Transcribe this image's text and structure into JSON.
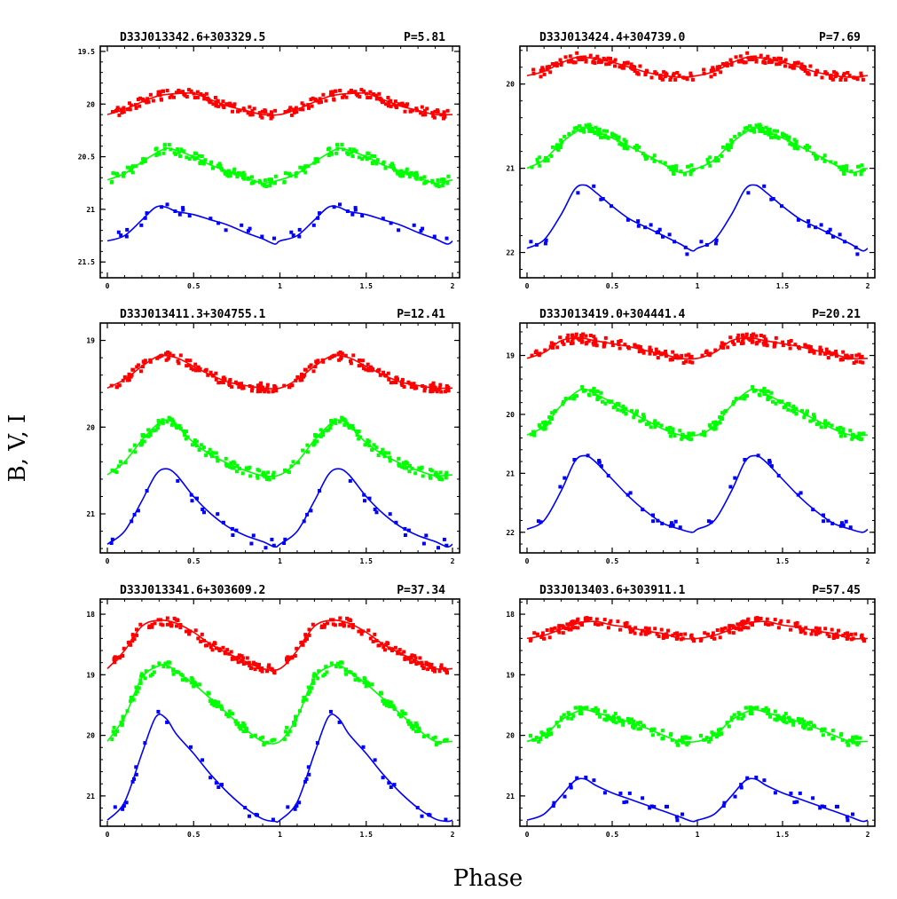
{
  "figure": {
    "ylabel": "B, V, I",
    "xlabel": "Phase"
  },
  "colors": {
    "I": "#ff0000",
    "V": "#00ff00",
    "B": "#0000ff"
  },
  "chart_data": [
    {
      "type": "line",
      "title": "D33J013342.6+303329.5",
      "period_label": "P=5.81",
      "xlim": [
        0,
        2
      ],
      "ylim": [
        21.65,
        19.45
      ],
      "xticks": [
        0,
        0.5,
        1,
        1.5,
        2
      ],
      "xtick_labels": [
        "0",
        "0.5",
        "1",
        "1.5",
        "2"
      ],
      "yticks": [
        19.5,
        20,
        20.5,
        21,
        21.5
      ],
      "ytick_labels": [
        "19.5",
        "20",
        "20.5",
        "21",
        "21.5"
      ],
      "series": [
        {
          "band": "I",
          "phase": [
            0,
            0.1,
            0.2,
            0.3,
            0.4,
            0.5,
            0.6,
            0.7,
            0.8,
            0.9,
            1.0
          ],
          "mag": [
            20.1,
            20.05,
            19.98,
            19.92,
            19.9,
            19.9,
            19.96,
            20.02,
            20.06,
            20.1,
            20.1
          ]
        },
        {
          "band": "V",
          "phase": [
            0,
            0.1,
            0.2,
            0.3,
            0.35,
            0.4,
            0.5,
            0.6,
            0.7,
            0.8,
            0.9,
            1.0
          ],
          "mag": [
            20.72,
            20.66,
            20.55,
            20.45,
            20.42,
            20.44,
            20.5,
            20.58,
            20.64,
            20.7,
            20.75,
            20.72
          ]
        },
        {
          "band": "B",
          "phase": [
            0,
            0.1,
            0.2,
            0.28,
            0.34,
            0.4,
            0.5,
            0.6,
            0.7,
            0.8,
            0.9,
            0.97,
            1.0
          ],
          "mag": [
            21.3,
            21.25,
            21.1,
            20.98,
            20.98,
            21.02,
            21.05,
            21.1,
            21.15,
            21.22,
            21.28,
            21.33,
            21.3
          ]
        }
      ]
    },
    {
      "type": "line",
      "title": "D33J013424.4+304739.0",
      "period_label": "P=7.69",
      "xlim": [
        0,
        2
      ],
      "ylim": [
        22.3,
        19.55
      ],
      "xticks": [
        0,
        0.5,
        1,
        1.5,
        2
      ],
      "xtick_labels": [
        "0",
        "0.5",
        "1",
        "1.5",
        "2"
      ],
      "yticks": [
        20,
        21,
        22
      ],
      "ytick_labels": [
        "20",
        "21",
        "22"
      ],
      "series": [
        {
          "band": "I",
          "phase": [
            0,
            0.1,
            0.2,
            0.3,
            0.4,
            0.5,
            0.6,
            0.7,
            0.8,
            0.9,
            1.0
          ],
          "mag": [
            19.9,
            19.85,
            19.75,
            19.68,
            19.7,
            19.74,
            19.8,
            19.86,
            19.9,
            19.92,
            19.9
          ]
        },
        {
          "band": "V",
          "phase": [
            0,
            0.1,
            0.2,
            0.3,
            0.35,
            0.4,
            0.5,
            0.6,
            0.7,
            0.8,
            0.9,
            1.0
          ],
          "mag": [
            21.0,
            20.9,
            20.7,
            20.55,
            20.52,
            20.56,
            20.64,
            20.74,
            20.84,
            20.95,
            21.05,
            21.0
          ]
        },
        {
          "band": "B",
          "phase": [
            0,
            0.1,
            0.2,
            0.28,
            0.34,
            0.4,
            0.5,
            0.6,
            0.7,
            0.8,
            0.9,
            0.97,
            1.0
          ],
          "mag": [
            21.95,
            21.85,
            21.55,
            21.25,
            21.2,
            21.28,
            21.45,
            21.6,
            21.7,
            21.8,
            21.9,
            21.98,
            21.95
          ]
        }
      ]
    },
    {
      "type": "line",
      "title": "D33J013411.3+304755.1",
      "period_label": "P=12.41",
      "xlim": [
        0,
        2
      ],
      "ylim": [
        21.45,
        18.8
      ],
      "xticks": [
        0,
        0.5,
        1,
        1.5,
        2
      ],
      "xtick_labels": [
        "0",
        "0.5",
        "1",
        "1.5",
        "2"
      ],
      "yticks": [
        19,
        20,
        21
      ],
      "ytick_labels": [
        "19",
        "20",
        "21"
      ],
      "series": [
        {
          "band": "I",
          "phase": [
            0,
            0.1,
            0.2,
            0.3,
            0.4,
            0.5,
            0.6,
            0.7,
            0.8,
            0.9,
            1.0
          ],
          "mag": [
            19.55,
            19.45,
            19.3,
            19.18,
            19.2,
            19.3,
            19.4,
            19.48,
            19.52,
            19.55,
            19.55
          ]
        },
        {
          "band": "V",
          "phase": [
            0,
            0.1,
            0.2,
            0.3,
            0.35,
            0.4,
            0.5,
            0.6,
            0.7,
            0.8,
            0.9,
            1.0
          ],
          "mag": [
            20.55,
            20.4,
            20.15,
            19.95,
            19.92,
            19.98,
            20.18,
            20.32,
            20.42,
            20.5,
            20.56,
            20.55
          ]
        },
        {
          "band": "B",
          "phase": [
            0,
            0.1,
            0.2,
            0.28,
            0.34,
            0.4,
            0.5,
            0.6,
            0.7,
            0.8,
            0.9,
            0.97,
            1.0
          ],
          "mag": [
            21.35,
            21.2,
            20.85,
            20.55,
            20.48,
            20.55,
            20.8,
            21.0,
            21.15,
            21.25,
            21.32,
            21.38,
            21.35
          ]
        }
      ]
    },
    {
      "type": "line",
      "title": "D33J013419.0+304441.4",
      "period_label": "P=20.21",
      "xlim": [
        0,
        2
      ],
      "ylim": [
        22.35,
        18.45
      ],
      "xticks": [
        0,
        0.5,
        1,
        1.5,
        2
      ],
      "xtick_labels": [
        "0",
        "0.5",
        "1",
        "1.5",
        "2"
      ],
      "yticks": [
        19,
        20,
        21,
        22
      ],
      "ytick_labels": [
        "19",
        "20",
        "21",
        "22"
      ],
      "series": [
        {
          "band": "I",
          "phase": [
            0,
            0.1,
            0.2,
            0.3,
            0.4,
            0.5,
            0.6,
            0.7,
            0.8,
            0.9,
            1.0
          ],
          "mag": [
            19.05,
            18.95,
            18.75,
            18.7,
            18.75,
            18.8,
            18.85,
            18.92,
            18.98,
            19.05,
            19.05
          ]
        },
        {
          "band": "V",
          "phase": [
            0,
            0.1,
            0.2,
            0.3,
            0.35,
            0.4,
            0.5,
            0.6,
            0.7,
            0.8,
            0.9,
            1.0
          ],
          "mag": [
            20.35,
            20.2,
            19.85,
            19.6,
            19.58,
            19.65,
            19.8,
            19.95,
            20.1,
            20.25,
            20.35,
            20.35
          ]
        },
        {
          "band": "B",
          "phase": [
            0,
            0.1,
            0.2,
            0.28,
            0.34,
            0.4,
            0.5,
            0.6,
            0.7,
            0.8,
            0.9,
            0.97,
            1.0
          ],
          "mag": [
            21.95,
            21.8,
            21.3,
            20.8,
            20.7,
            20.8,
            21.1,
            21.4,
            21.65,
            21.85,
            21.95,
            22.0,
            21.95
          ]
        }
      ]
    },
    {
      "type": "line",
      "title": "D33J013341.6+303609.2",
      "period_label": "P=37.34",
      "xlim": [
        0,
        2
      ],
      "ylim": [
        21.5,
        17.75
      ],
      "xticks": [
        0,
        0.5,
        1,
        1.5,
        2
      ],
      "xtick_labels": [
        "0",
        "0.5",
        "1",
        "1.5",
        "2"
      ],
      "yticks": [
        18,
        19,
        20,
        21
      ],
      "ytick_labels": [
        "18",
        "19",
        "20",
        "21"
      ],
      "series": [
        {
          "band": "I",
          "phase": [
            0,
            0.1,
            0.2,
            0.3,
            0.4,
            0.5,
            0.6,
            0.7,
            0.8,
            0.9,
            1.0
          ],
          "mag": [
            18.9,
            18.6,
            18.2,
            18.1,
            18.15,
            18.3,
            18.5,
            18.65,
            18.78,
            18.9,
            18.9
          ]
        },
        {
          "band": "V",
          "phase": [
            0,
            0.1,
            0.2,
            0.3,
            0.35,
            0.4,
            0.5,
            0.6,
            0.7,
            0.8,
            0.9,
            1.0
          ],
          "mag": [
            20.1,
            19.7,
            19.05,
            18.85,
            18.85,
            18.95,
            19.15,
            19.4,
            19.65,
            19.9,
            20.1,
            20.1
          ]
        },
        {
          "band": "B",
          "phase": [
            0,
            0.1,
            0.2,
            0.28,
            0.34,
            0.4,
            0.5,
            0.6,
            0.7,
            0.8,
            0.9,
            0.97,
            1.0
          ],
          "mag": [
            21.4,
            21.1,
            20.3,
            19.7,
            19.72,
            19.98,
            20.3,
            20.65,
            20.95,
            21.2,
            21.38,
            21.42,
            21.4
          ]
        }
      ]
    },
    {
      "type": "line",
      "title": "D33J013403.6+303911.1",
      "period_label": "P=57.45",
      "xlim": [
        0,
        2
      ],
      "ylim": [
        21.5,
        17.75
      ],
      "xticks": [
        0,
        0.5,
        1,
        1.5,
        2
      ],
      "xtick_labels": [
        "0",
        "0.5",
        "1",
        "1.5",
        "2"
      ],
      "yticks": [
        18,
        19,
        20,
        21
      ],
      "ytick_labels": [
        "18",
        "19",
        "20",
        "21"
      ],
      "series": [
        {
          "band": "I",
          "phase": [
            0,
            0.1,
            0.2,
            0.3,
            0.4,
            0.5,
            0.6,
            0.7,
            0.8,
            0.9,
            1.0
          ],
          "mag": [
            18.4,
            18.35,
            18.25,
            18.15,
            18.12,
            18.18,
            18.22,
            18.28,
            18.32,
            18.4,
            18.4
          ]
        },
        {
          "band": "V",
          "phase": [
            0,
            0.1,
            0.2,
            0.3,
            0.35,
            0.4,
            0.5,
            0.6,
            0.7,
            0.8,
            0.9,
            1.0
          ],
          "mag": [
            20.1,
            20.0,
            19.75,
            19.6,
            19.58,
            19.62,
            19.7,
            19.78,
            19.88,
            20.0,
            20.1,
            20.1
          ]
        },
        {
          "band": "B",
          "phase": [
            0,
            0.1,
            0.2,
            0.28,
            0.34,
            0.4,
            0.5,
            0.6,
            0.7,
            0.8,
            0.9,
            0.97,
            1.0
          ],
          "mag": [
            21.4,
            21.3,
            21.0,
            20.75,
            20.72,
            20.82,
            20.95,
            21.05,
            21.15,
            21.25,
            21.35,
            21.42,
            21.4
          ]
        }
      ]
    }
  ]
}
